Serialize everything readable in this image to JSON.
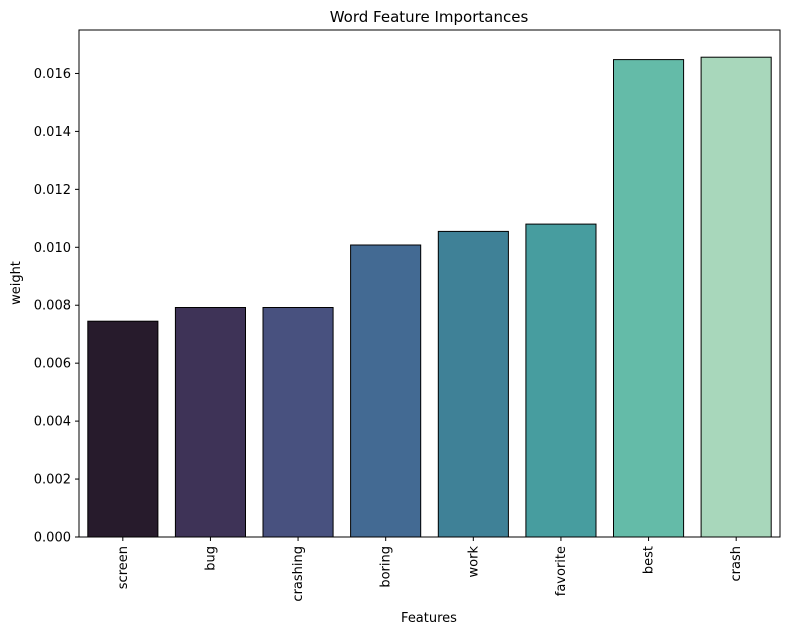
{
  "chart_data": {
    "type": "bar",
    "title": "Word Feature Importances",
    "xlabel": "Features",
    "ylabel": "weight",
    "categories": [
      "screen",
      "bug",
      "crashing",
      "boring",
      "work",
      "favorite",
      "best",
      "crash"
    ],
    "values": [
      0.00745,
      0.00792,
      0.00792,
      0.01008,
      0.01055,
      0.0108,
      0.01648,
      0.01656
    ],
    "ylim": [
      0,
      0.0175
    ],
    "yticks": [
      "0.000",
      "0.002",
      "0.004",
      "0.006",
      "0.008",
      "0.010",
      "0.012",
      "0.014",
      "0.016"
    ],
    "grid": false,
    "colors": [
      "#271b2c",
      "#3e3357",
      "#48517f",
      "#436a93",
      "#3f8197",
      "#479d9f",
      "#64bba8",
      "#a8d7bb"
    ],
    "edge_color": "#000000"
  }
}
